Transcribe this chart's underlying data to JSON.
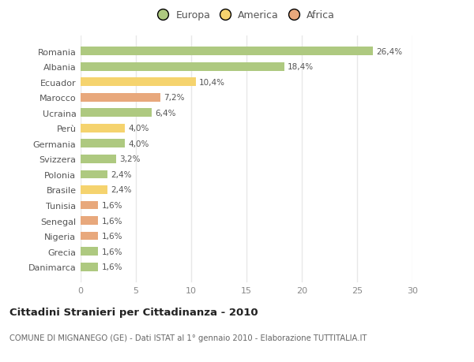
{
  "categories": [
    "Danimarca",
    "Grecia",
    "Nigeria",
    "Senegal",
    "Tunisia",
    "Brasile",
    "Polonia",
    "Svizzera",
    "Germania",
    "Perù",
    "Ucraina",
    "Marocco",
    "Ecuador",
    "Albania",
    "Romania"
  ],
  "values": [
    1.6,
    1.6,
    1.6,
    1.6,
    1.6,
    2.4,
    2.4,
    3.2,
    4.0,
    4.0,
    6.4,
    7.2,
    10.4,
    18.4,
    26.4
  ],
  "labels": [
    "1,6%",
    "1,6%",
    "1,6%",
    "1,6%",
    "1,6%",
    "2,4%",
    "2,4%",
    "3,2%",
    "4,0%",
    "4,0%",
    "6,4%",
    "7,2%",
    "10,4%",
    "18,4%",
    "26,4%"
  ],
  "continents": [
    "Europa",
    "Europa",
    "Africa",
    "Africa",
    "Africa",
    "America",
    "Europa",
    "Europa",
    "Europa",
    "America",
    "Europa",
    "Africa",
    "America",
    "Europa",
    "Europa"
  ],
  "colors": {
    "Europa": "#aec980",
    "America": "#f5d36e",
    "Africa": "#e8a87c"
  },
  "xlim": [
    0,
    30
  ],
  "xticks": [
    0,
    5,
    10,
    15,
    20,
    25,
    30
  ],
  "title": "Cittadini Stranieri per Cittadinanza - 2010",
  "subtitle": "COMUNE DI MIGNANEGO (GE) - Dati ISTAT al 1° gennaio 2010 - Elaborazione TUTTITALIA.IT",
  "background_color": "#ffffff",
  "plot_bg_color": "#ffffff",
  "grid_color": "#e8e8e8",
  "bar_height": 0.55,
  "legend_entries": [
    "Europa",
    "America",
    "Africa"
  ]
}
